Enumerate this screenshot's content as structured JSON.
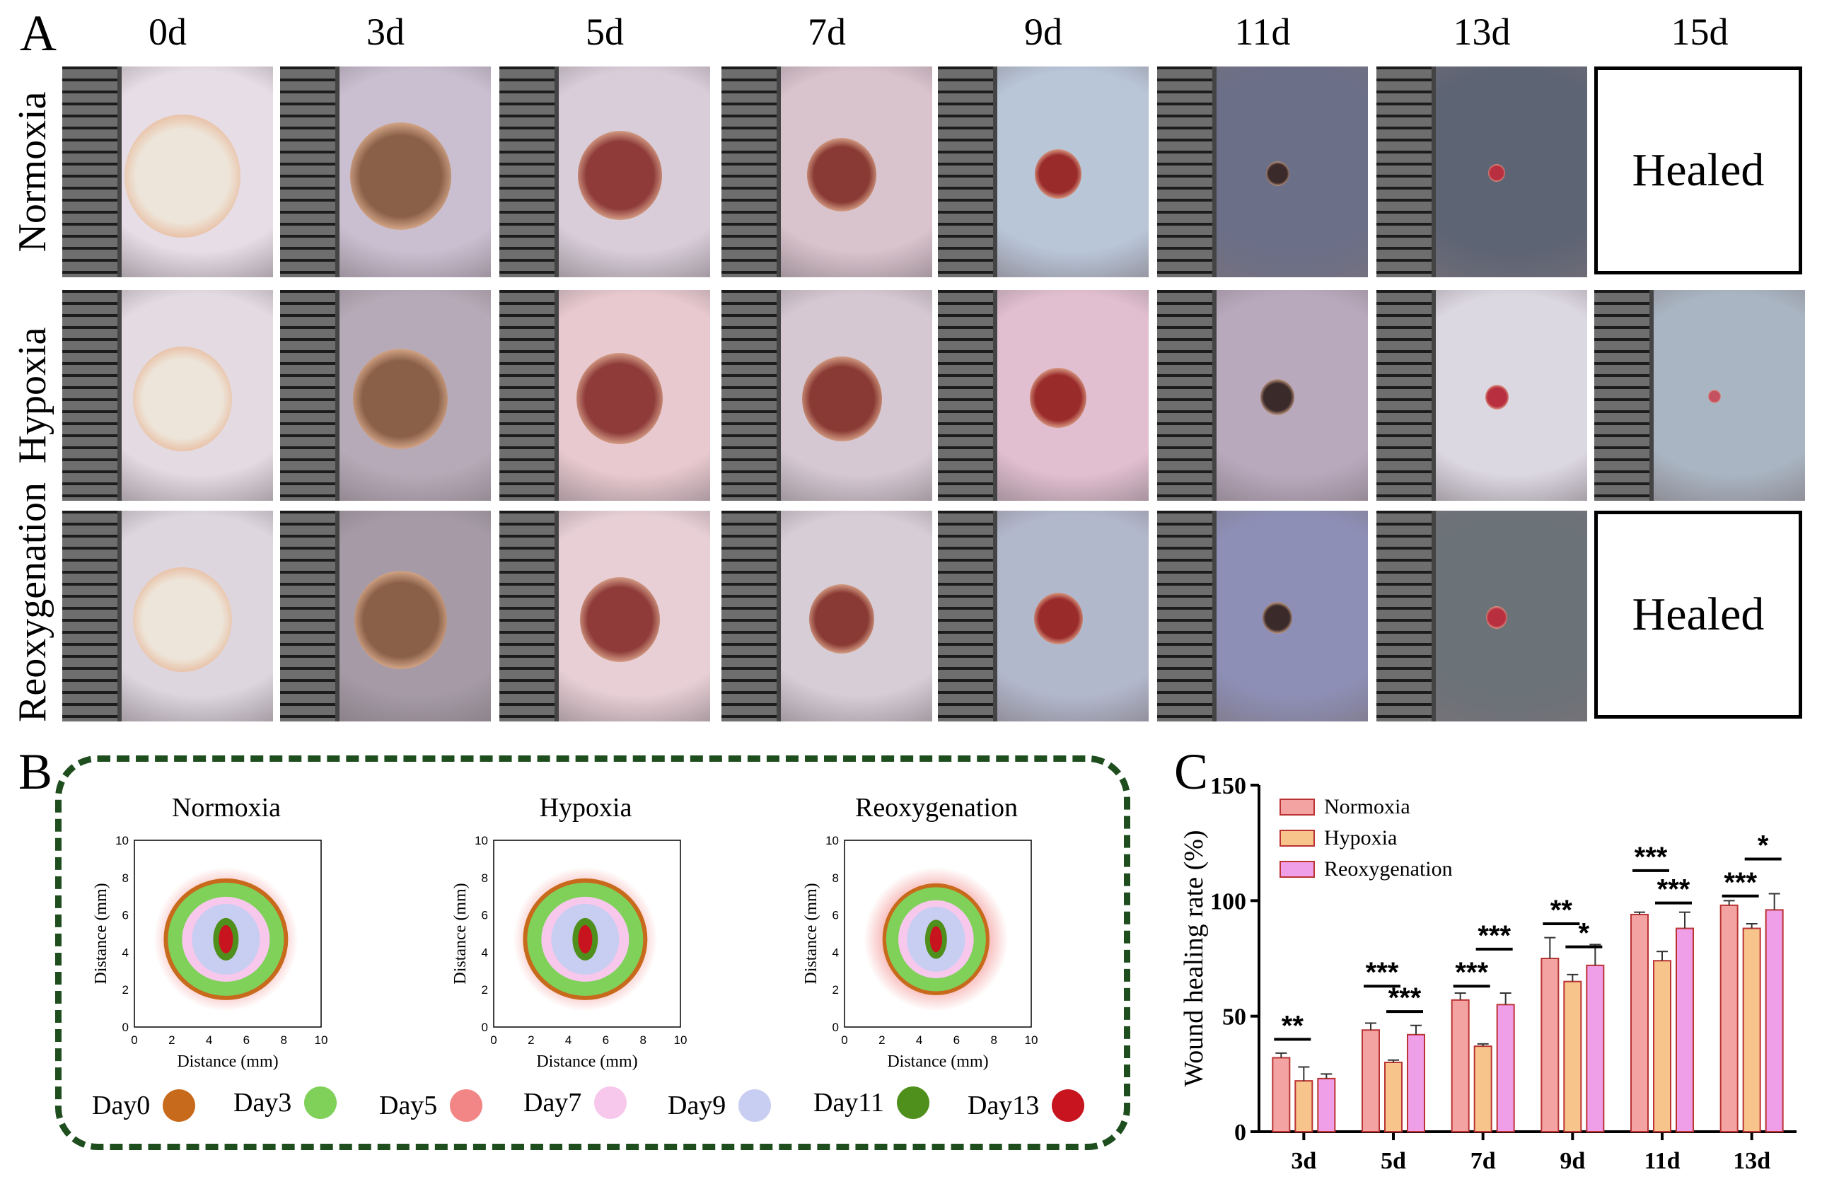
{
  "panel_a": {
    "letter": "A",
    "columns": [
      "0d",
      "3d",
      "5d",
      "7d",
      "9d",
      "11d",
      "13d",
      "15d"
    ],
    "rows": [
      "Normoxia",
      "Hypoxia",
      "Reoxygenation"
    ],
    "healed_text": "Healed"
  },
  "panel_b": {
    "letter": "B",
    "plots": [
      {
        "title": "Normoxia",
        "xlabel": "Distance (mm)",
        "ylabel": "Distance (mm)"
      },
      {
        "title": "Hypoxia",
        "xlabel": "Distance (mm)",
        "ylabel": "Distance (mm)"
      },
      {
        "title": "Reoxygenation",
        "xlabel": "Distance (mm)",
        "ylabel": "Distance (mm)"
      }
    ],
    "ticks": [
      "0",
      "2",
      "4",
      "6",
      "8",
      "10"
    ],
    "legend": [
      {
        "label": "Day0",
        "color": "#c86a1c"
      },
      {
        "label": "Day3",
        "color": "#7fd15a"
      },
      {
        "label": "Day5",
        "color": "#f28585"
      },
      {
        "label": "Day7",
        "color": "#f7c8ec"
      },
      {
        "label": "Day9",
        "color": "#c8cdf2"
      },
      {
        "label": "Day11",
        "color": "#4f8f1c"
      },
      {
        "label": "Day13",
        "color": "#c8141e"
      }
    ]
  },
  "panel_c": {
    "letter": "C"
  },
  "chart_data": {
    "type": "bar",
    "title": "",
    "xlabel": "",
    "ylabel": "Wound healing rate (%)",
    "ylim": [
      0,
      150
    ],
    "yticks": [
      "0",
      "50",
      "100",
      "150"
    ],
    "categories": [
      "3d",
      "5d",
      "7d",
      "9d",
      "11d",
      "13d"
    ],
    "series": [
      {
        "name": "Normoxia",
        "color": "#f4a3a3",
        "values": [
          32,
          44,
          57,
          75,
          94,
          98
        ],
        "errors": [
          2,
          3,
          3,
          9,
          1,
          2
        ]
      },
      {
        "name": "Hypoxia",
        "color": "#f7c48c",
        "values": [
          22,
          30,
          37,
          65,
          74,
          88
        ],
        "errors": [
          6,
          1,
          1,
          3,
          4,
          2
        ]
      },
      {
        "name": "Reoxygenation",
        "color": "#ef9fe8",
        "values": [
          23,
          42,
          55,
          72,
          88,
          96
        ],
        "errors": [
          2,
          4,
          5,
          9,
          7,
          7
        ]
      }
    ],
    "significance": [
      {
        "label": "**",
        "category": "3d",
        "y": 40
      },
      {
        "label": "***",
        "category": "5d",
        "y": 63
      },
      {
        "label": "***",
        "category": "5d",
        "y": 52
      },
      {
        "label": "***",
        "category": "7d",
        "y": 63
      },
      {
        "label": "***",
        "category": "7d",
        "y": 79
      },
      {
        "label": "**",
        "category": "9d",
        "y": 90
      },
      {
        "label": "*",
        "category": "9d",
        "y": 80
      },
      {
        "label": "***",
        "category": "11d",
        "y": 113
      },
      {
        "label": "***",
        "category": "11d",
        "y": 99
      },
      {
        "label": "***",
        "category": "13d",
        "y": 102
      },
      {
        "label": "*",
        "category": "13d",
        "y": 118
      }
    ]
  }
}
